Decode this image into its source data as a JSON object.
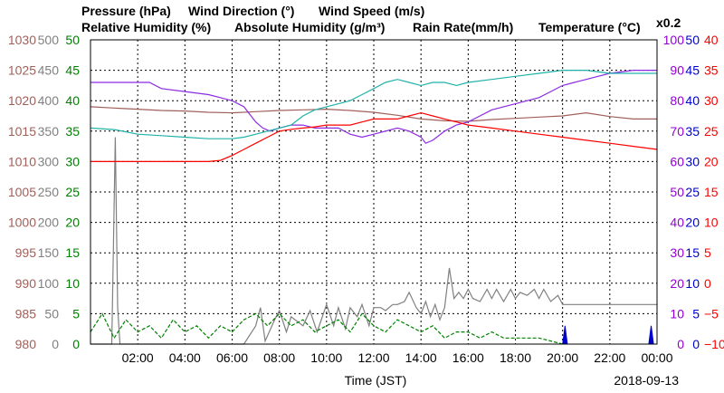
{
  "chart_data": {
    "type": "line",
    "xlabel": "Time (JST)",
    "date": "2018-09-13",
    "x_ticks": [
      "02:00",
      "04:00",
      "06:00",
      "08:00",
      "10:00",
      "12:00",
      "14:00",
      "16:00",
      "18:00",
      "20:00",
      "22:00",
      "00:00"
    ],
    "xlim_hours": [
      0,
      24
    ],
    "grid": true,
    "legend": [
      {
        "id": "pressure",
        "label": "Pressure (hPa)",
        "color": "#a0605a"
      },
      {
        "id": "wind_dir",
        "label": "Wind Direction (°)",
        "color": "#808080"
      },
      {
        "id": "wind_speed",
        "label": "Wind Speed (m/s)",
        "color": "#008000"
      },
      {
        "id": "rh",
        "label": "Relative Humidity (%)",
        "color": "#8a2be2"
      },
      {
        "id": "ah",
        "label": "Absolute Humidity (g/m³)",
        "color": "#20b2aa"
      },
      {
        "id": "rain",
        "label": "Rain Rate(mm/h)",
        "color": "#0000cc"
      },
      {
        "id": "temp",
        "label": "Temperature (°C)",
        "color": "#ff0000"
      }
    ],
    "ah_scale_note": "x0.2",
    "axes": {
      "pressure": {
        "ticks": [
          "1030",
          "1025",
          "1020",
          "1015",
          "1010",
          "1005",
          "1000",
          "995",
          "990",
          "985",
          "980"
        ],
        "range": [
          980,
          1030
        ],
        "color": "#a0605a"
      },
      "wind_dir": {
        "ticks": [
          "500",
          "450",
          "400",
          "350",
          "300",
          "250",
          "200",
          "150",
          "100",
          "50",
          "0"
        ],
        "range": [
          0,
          500
        ],
        "color": "#808080"
      },
      "wind_speed": {
        "ticks": [
          "45",
          "40",
          "35",
          "30",
          "25",
          "20",
          "15",
          "10",
          "5",
          "0"
        ],
        "range": [
          0,
          50
        ],
        "color": "#008000"
      },
      "rh": {
        "ticks": [
          "100",
          "90",
          "80",
          "70",
          "60",
          "50",
          "40",
          "30",
          "20",
          "10",
          "0"
        ],
        "range": [
          0,
          100
        ],
        "color": "#9400d3"
      },
      "rain": {
        "ticks": [
          "50",
          "45",
          "40",
          "35",
          "30",
          "25",
          "20",
          "15",
          "10",
          "5",
          "0"
        ],
        "range": [
          0,
          50
        ],
        "color": "#0000cc"
      },
      "temp": {
        "ticks": [
          "40",
          "35",
          "30",
          "25",
          "20",
          "15",
          "10",
          "5",
          "0",
          "−5",
          "−10"
        ],
        "range": [
          -10,
          40
        ],
        "color": "#ff0000"
      }
    },
    "series": [
      {
        "name": "Pressure",
        "axis": "pressure",
        "color": "#a0605a",
        "x": [
          0,
          1,
          2,
          3,
          4,
          5,
          6,
          7,
          8,
          9,
          10,
          11,
          12,
          13,
          14,
          15,
          16,
          17,
          18,
          19,
          20,
          21,
          22,
          23,
          24
        ],
        "y": [
          1019,
          1018.8,
          1018.6,
          1018.4,
          1018.3,
          1018.1,
          1018,
          1018.2,
          1018.4,
          1018.5,
          1018.6,
          1018.4,
          1018.1,
          1017.6,
          1017,
          1016.7,
          1016.6,
          1016.9,
          1017.1,
          1017.3,
          1017.5,
          1018,
          1017.4,
          1017,
          1017
        ]
      },
      {
        "name": "Wind Direction",
        "axis": "wind_dir",
        "color": "#808080",
        "x": [
          0,
          0.9,
          1.05,
          1.1,
          1.15,
          1.25,
          1.4,
          2,
          2.5,
          3,
          4,
          5,
          6,
          6.5,
          7,
          7.2,
          7.4,
          7.8,
          8,
          8.3,
          8.5,
          9,
          9.3,
          9.6,
          10,
          10.3,
          10.5,
          10.8,
          11,
          11.3,
          11.5,
          11.8,
          12,
          12.3,
          12.5,
          12.8,
          13,
          13.3,
          13.5,
          13.8,
          14,
          14.2,
          14.4,
          14.6,
          14.8,
          15,
          15.2,
          15.4,
          15.6,
          15.8,
          16,
          16.2,
          16.5,
          16.8,
          17,
          17.2,
          17.5,
          17.8,
          18,
          18.2,
          18.5,
          18.8,
          19,
          19.2,
          19.5,
          19.8,
          20,
          21,
          22,
          23,
          24
        ],
        "y": [
          0,
          0,
          340,
          200,
          60,
          0,
          0,
          0,
          0,
          0,
          0,
          0,
          0,
          0,
          30,
          60,
          5,
          40,
          55,
          20,
          45,
          30,
          55,
          20,
          65,
          30,
          60,
          25,
          60,
          45,
          65,
          30,
          60,
          60,
          55,
          65,
          65,
          70,
          85,
          60,
          50,
          70,
          45,
          65,
          40,
          60,
          125,
          75,
          85,
          75,
          90,
          75,
          70,
          90,
          75,
          90,
          70,
          90,
          75,
          85,
          80,
          90,
          75,
          90,
          70,
          80,
          65,
          65,
          65,
          65,
          65
        ]
      },
      {
        "name": "Wind Speed",
        "axis": "wind_speed",
        "color": "#008000",
        "x": [
          0,
          0.5,
          1,
          1.5,
          2,
          2.5,
          3,
          3.5,
          4,
          4.5,
          5,
          5.5,
          6,
          6.5,
          7,
          7.5,
          8,
          8.5,
          9,
          9.5,
          10,
          10.5,
          11,
          11.5,
          12,
          12.5,
          13,
          13.5,
          14,
          14.5,
          15,
          15.5,
          16,
          16.5,
          17,
          17.5,
          18,
          18.5,
          19,
          19.5,
          20
        ],
        "y": [
          2,
          5,
          1,
          4,
          2,
          3,
          1,
          4,
          2,
          3,
          1,
          3,
          2,
          4,
          5,
          3,
          5,
          3,
          4,
          2,
          3,
          4,
          2,
          5,
          3,
          2,
          4,
          3,
          2,
          3,
          1,
          2,
          2,
          1,
          2,
          1,
          1,
          1,
          1,
          0.5,
          0
        ]
      },
      {
        "name": "Relative Humidity",
        "axis": "rh",
        "color": "#8a2be2",
        "x": [
          0,
          1,
          2,
          2.5,
          3,
          4,
          5,
          5.5,
          6,
          6.5,
          7,
          7.3,
          7.6,
          8,
          8.5,
          9,
          9.5,
          10,
          10.5,
          11,
          11.5,
          12,
          12.5,
          13,
          13.5,
          14,
          14.2,
          14.5,
          15,
          15.5,
          16,
          16.5,
          17,
          17.5,
          18,
          18.5,
          19,
          19.5,
          20,
          20.5,
          21,
          21.5,
          22,
          23,
          24
        ],
        "y": [
          86,
          86,
          86,
          86,
          84,
          83,
          82,
          81,
          80,
          78,
          73,
          71,
          70,
          71,
          72,
          72,
          71,
          71,
          71,
          69,
          68,
          69,
          70,
          71,
          70,
          68,
          66,
          67,
          70,
          72,
          73,
          75,
          77,
          78,
          79,
          80,
          81,
          83,
          85,
          86,
          87,
          88,
          89,
          90,
          90
        ]
      },
      {
        "name": "Absolute Humidity",
        "axis": "ah",
        "color": "#20b2aa",
        "x": [
          0,
          1,
          2,
          3,
          4,
          5,
          6,
          6.5,
          7,
          7.5,
          8,
          8.5,
          9,
          9.5,
          10,
          10.5,
          11,
          11.5,
          12,
          12.5,
          13,
          13.5,
          14,
          14.5,
          15,
          15.5,
          16,
          17,
          18,
          19,
          20,
          21,
          22,
          23,
          24
        ],
        "y": [
          71,
          70.5,
          69,
          68.5,
          68,
          67.5,
          67.5,
          68,
          69,
          70,
          71,
          72,
          75,
          77,
          78,
          79,
          80,
          82,
          84,
          86,
          87,
          86,
          85,
          86,
          86,
          85,
          86,
          87,
          88,
          89,
          90,
          90,
          89,
          89,
          89
        ]
      },
      {
        "name": "Rain Rate",
        "axis": "rain",
        "color": "#0000cc",
        "x": [
          0,
          19.9,
          20.0,
          20.1,
          20.2,
          23.5,
          23.65,
          23.75,
          23.85,
          24
        ],
        "y": [
          0,
          0,
          0,
          3,
          0,
          0,
          0,
          3,
          0,
          0
        ]
      },
      {
        "name": "Temperature",
        "axis": "temp",
        "color": "#ff0000",
        "x": [
          0,
          1,
          2,
          3,
          4,
          5,
          5.5,
          6,
          6.5,
          7,
          7.5,
          8,
          8.5,
          9,
          9.5,
          10,
          10.5,
          11,
          11.5,
          12,
          12.5,
          13,
          13.5,
          14,
          14.5,
          15,
          15.5,
          16,
          17,
          18,
          19,
          20,
          21,
          22,
          23,
          24
        ],
        "y": [
          20,
          20,
          20,
          20,
          20,
          20,
          20.2,
          21,
          22,
          23,
          24,
          25,
          25.3,
          25.5,
          25.7,
          26,
          26,
          26,
          26.5,
          27,
          27,
          27,
          27.5,
          28,
          27.5,
          27,
          26.5,
          26,
          25.5,
          25,
          24.5,
          24,
          23.5,
          23,
          22.5,
          22
        ]
      }
    ]
  }
}
